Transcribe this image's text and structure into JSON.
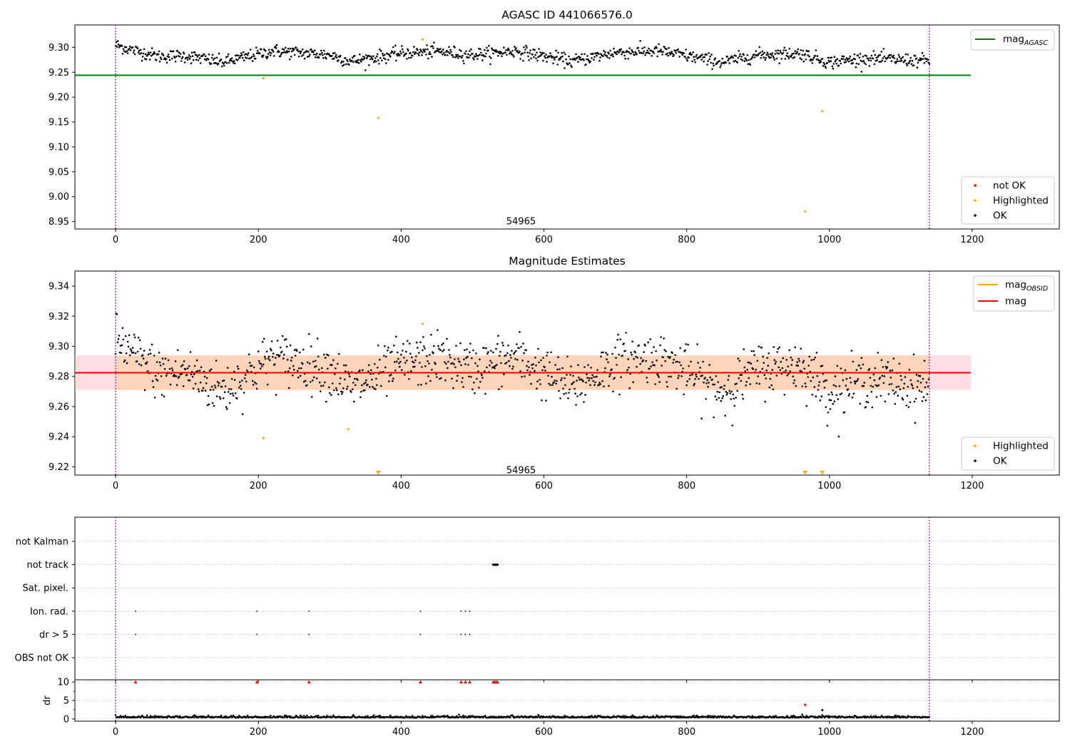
{
  "chart_data": [
    {
      "type": "scatter",
      "title": "AGASC ID 441066576.0",
      "xlim": [
        -57,
        1322
      ],
      "ylim": [
        8.935,
        9.345
      ],
      "x_ticks": [
        0,
        200,
        400,
        600,
        800,
        1000,
        1200
      ],
      "y_ticks": [
        8.95,
        9.0,
        9.05,
        9.1,
        9.15,
        9.2,
        9.25,
        9.3
      ],
      "y_tick_labels": [
        "8.95",
        "9.00",
        "9.05",
        "9.10",
        "9.15",
        "9.20",
        "9.25",
        "9.30"
      ],
      "annotation": "54965",
      "annotation_pos": {
        "x": 568,
        "y": 8.95
      },
      "vlines": [
        0,
        1140
      ],
      "hlines": [
        {
          "name": "mag_AGASC",
          "y": 9.244,
          "x_range": [
            -57,
            1198
          ],
          "color": "#008000"
        }
      ],
      "legend_top": [
        {
          "label": "mag",
          "sub": "AGASC",
          "color": "#008000",
          "kind": "line"
        }
      ],
      "legend_bottom": [
        {
          "label": "not OK",
          "color": "#ff0000",
          "kind": "dot"
        },
        {
          "label": "Highlighted",
          "color": "#ffa500",
          "kind": "dot"
        },
        {
          "label": "OK",
          "color": "#000000",
          "kind": "dot"
        }
      ],
      "ok_trend": {
        "x_range": [
          0,
          1140
        ],
        "knots_x": [
          0,
          20,
          60,
          100,
          150,
          220,
          300,
          330,
          400,
          450,
          500,
          560,
          640,
          700,
          760,
          800,
          850,
          900,
          960,
          1000,
          1050,
          1140
        ],
        "knots_y": [
          9.305,
          9.296,
          9.282,
          9.283,
          9.27,
          9.293,
          9.285,
          9.272,
          9.288,
          9.292,
          9.285,
          9.293,
          9.272,
          9.29,
          9.293,
          9.283,
          9.27,
          9.285,
          9.288,
          9.27,
          9.278,
          9.273
        ],
        "noise": 0.0065
      },
      "highlighted": [
        {
          "x": 207,
          "y": 9.238
        },
        {
          "x": 368,
          "y": 9.158
        },
        {
          "x": 430,
          "y": 9.316
        },
        {
          "x": 966,
          "y": 8.97
        },
        {
          "x": 990,
          "y": 9.172
        }
      ]
    },
    {
      "type": "scatter",
      "title": "Magnitude Estimates",
      "xlim": [
        -57,
        1322
      ],
      "ylim": [
        9.2145,
        9.35
      ],
      "x_ticks": [
        0,
        200,
        400,
        600,
        800,
        1000,
        1200
      ],
      "y_ticks": [
        9.22,
        9.24,
        9.26,
        9.28,
        9.3,
        9.32,
        9.34
      ],
      "y_tick_labels": [
        "9.22",
        "9.24",
        "9.26",
        "9.28",
        "9.30",
        "9.32",
        "9.34"
      ],
      "annotation": "54965",
      "annotation_pos": {
        "x": 568,
        "y": 9.2175
      },
      "vlines": [
        0,
        1140
      ],
      "mag_line": {
        "y": 9.2825,
        "x_range": [
          -57,
          1198
        ],
        "color": "#ff0000"
      },
      "band": {
        "y_range": [
          9.271,
          9.294
        ],
        "x_range": [
          -57,
          1198
        ],
        "color": "#ffb6c1"
      },
      "obsid_band": {
        "y_range": [
          9.271,
          9.294
        ],
        "x_range": [
          0,
          1140
        ],
        "color": "#ffa500"
      },
      "legend_top": [
        {
          "label": "mag",
          "sub": "OBSID",
          "color": "#ffa500",
          "kind": "line"
        },
        {
          "label": "mag",
          "sub": "",
          "color": "#ff0000",
          "kind": "line"
        }
      ],
      "legend_bottom": [
        {
          "label": "Highlighted",
          "color": "#ffa500",
          "kind": "dot"
        },
        {
          "label": "OK",
          "color": "#000000",
          "kind": "dot"
        }
      ],
      "ok_trend": {
        "x_range": [
          0,
          1140
        ],
        "knots_x": [
          0,
          20,
          60,
          100,
          150,
          220,
          300,
          330,
          400,
          450,
          500,
          560,
          640,
          700,
          760,
          800,
          850,
          900,
          960,
          1000,
          1050,
          1140
        ],
        "knots_y": [
          9.305,
          9.296,
          9.282,
          9.283,
          9.27,
          9.293,
          9.285,
          9.272,
          9.288,
          9.292,
          9.285,
          9.293,
          9.272,
          9.29,
          9.293,
          9.283,
          9.27,
          9.285,
          9.288,
          9.27,
          9.278,
          9.273
        ],
        "noise": 0.0085
      },
      "highlighted": [
        {
          "x": 207,
          "y": 9.239
        },
        {
          "x": 326,
          "y": 9.245
        },
        {
          "x": 430,
          "y": 9.315
        }
      ],
      "below_axis_markers": [
        368,
        966,
        990
      ]
    },
    {
      "type": "scatter",
      "title": "",
      "xlim": [
        -57,
        1322
      ],
      "x_ticks": [
        0,
        200,
        400,
        600,
        800,
        1000,
        1200
      ],
      "vlines": [
        0,
        1140
      ],
      "flag_categories": [
        "not Kalman",
        "not track",
        "Sat. pixel.",
        "Ion. rad.",
        "dr > 5",
        "OBS not OK"
      ],
      "flag_points": [
        {
          "category": "not track",
          "x": [
            529,
            530,
            531,
            532,
            533,
            534,
            535
          ]
        },
        {
          "category": "Ion. rad.",
          "x": [
            28,
            198,
            271,
            427,
            484,
            490,
            496
          ]
        },
        {
          "category": "dr > 5",
          "x": [
            28,
            198,
            271,
            427,
            484,
            490,
            496
          ]
        }
      ]
    },
    {
      "type": "scatter",
      "title": "",
      "ylabel": "dr",
      "xlim": [
        -57,
        1322
      ],
      "ylim": [
        -0.6,
        10.6
      ],
      "x_ticks": [
        0,
        200,
        400,
        600,
        800,
        1000,
        1200
      ],
      "x_tick_labels": [
        "0",
        "200",
        "400",
        "600",
        "800",
        "1000",
        "1200"
      ],
      "y_ticks": [
        0,
        5,
        10
      ],
      "y_tick_labels": [
        "0",
        "5",
        "10"
      ],
      "vlines": [
        0,
        1140
      ],
      "baseline": {
        "x_range": [
          0,
          1140
        ],
        "level": 0.35,
        "noise": 0.22
      },
      "capped_red": [
        {
          "x": 28,
          "y": 10
        },
        {
          "x": 198,
          "y": 10
        },
        {
          "x": 271,
          "y": 10
        },
        {
          "x": 427,
          "y": 10
        },
        {
          "x": 484,
          "y": 10
        },
        {
          "x": 490,
          "y": 10
        },
        {
          "x": 496,
          "y": 10
        },
        {
          "x": 529,
          "y": 10
        },
        {
          "x": 531,
          "y": 10
        },
        {
          "x": 533,
          "y": 10
        },
        {
          "x": 535,
          "y": 10
        }
      ],
      "extra_red": [
        {
          "x": 966,
          "y": 3.8
        }
      ],
      "extra_black": [
        {
          "x": 990,
          "y": 2.4
        }
      ]
    }
  ]
}
